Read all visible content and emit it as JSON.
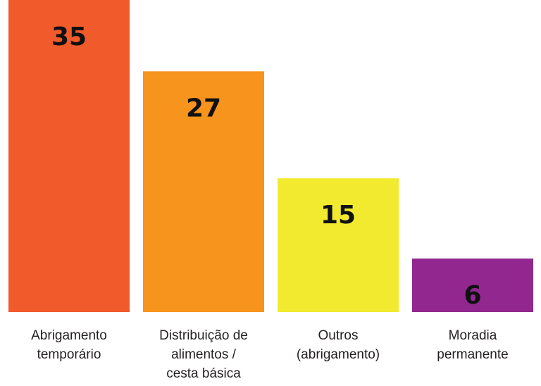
{
  "chart_data": {
    "type": "bar",
    "categories": [
      "Abrigamento\ntemporário",
      "Distribuição de\nalimentos /\ncesta básica",
      "Outros\n(abrigamento)",
      "Moradia\npermanente"
    ],
    "values": [
      35,
      27,
      15,
      6
    ],
    "colors": [
      "#f15a2b",
      "#f7941d",
      "#f2ea2f",
      "#92278f"
    ]
  }
}
